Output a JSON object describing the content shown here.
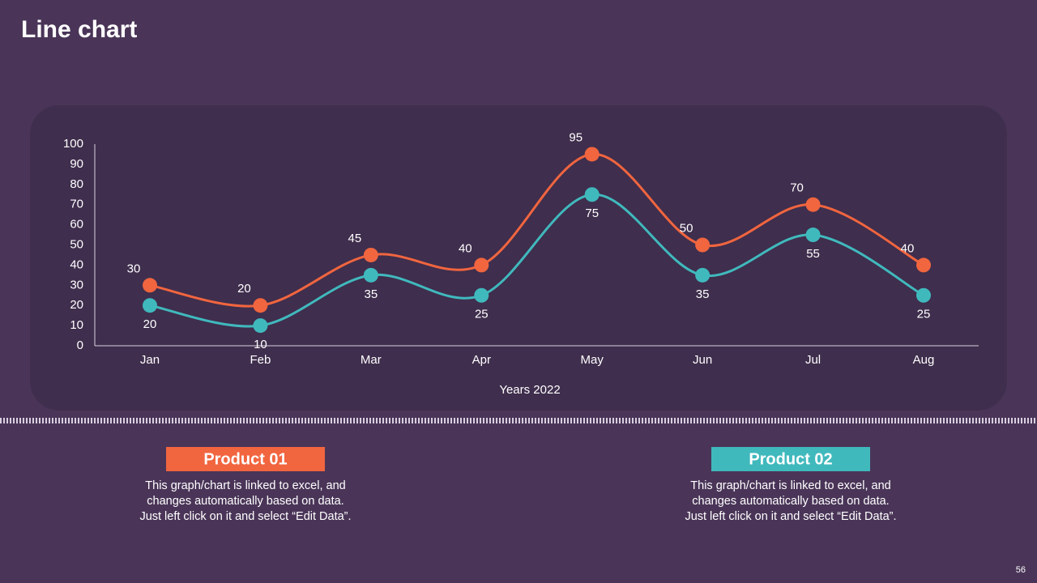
{
  "chart_data": {
    "type": "line",
    "title": "Line chart",
    "x_label": "Years 2022",
    "categories": [
      "Jan",
      "Feb",
      "Mar",
      "Apr",
      "May",
      "Jun",
      "Jul",
      "Aug"
    ],
    "series": [
      {
        "name": "Product 01",
        "color": "#f1653f",
        "values": [
          30,
          20,
          45,
          40,
          95,
          50,
          70,
          40
        ]
      },
      {
        "name": "Product 02",
        "color": "#40b9bd",
        "values": [
          20,
          10,
          35,
          25,
          75,
          35,
          55,
          25
        ]
      }
    ],
    "ylim": [
      0,
      100
    ],
    "yticks": [
      0,
      10,
      20,
      30,
      40,
      50,
      60,
      70,
      80,
      90,
      100
    ],
    "grid": false,
    "smooth": true
  },
  "notes": [
    [
      "This graph/chart is linked to excel, and",
      "changes automatically based on data.",
      "Just left click on it and select “Edit Data”."
    ],
    [
      "This graph/chart is linked to excel, and",
      "changes automatically based on data.",
      "Just left click on it and select “Edit Data”."
    ]
  ],
  "page_number": "56"
}
